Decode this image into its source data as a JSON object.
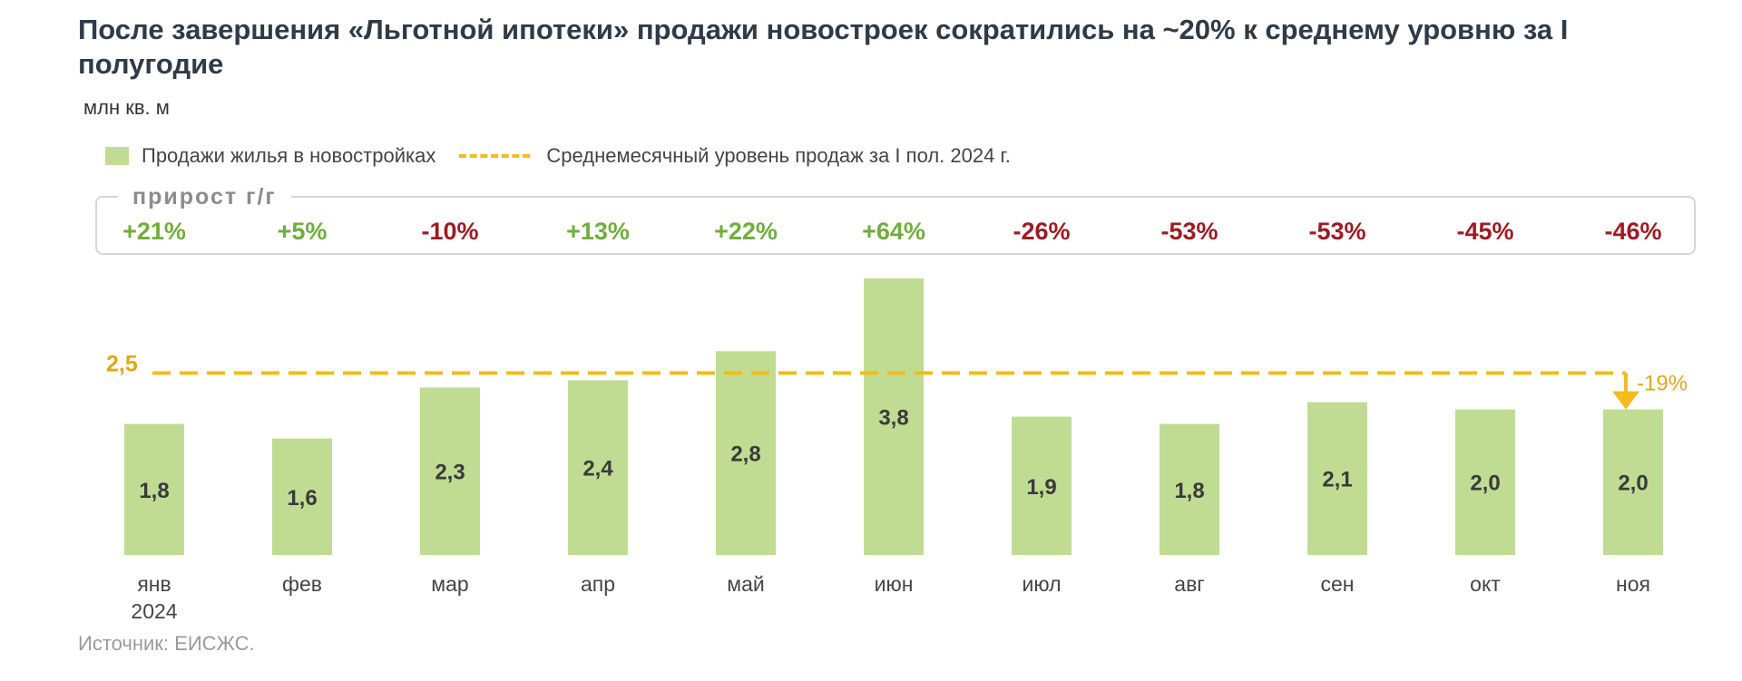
{
  "title": "После завершения «Льготной ипотеки» продажи новостроек сократились на ~20% к среднему уровню за I полугодие",
  "unit": "млн кв. м",
  "legend": {
    "bars": "Продажи жилья в новостройках",
    "line": "Среднемесячный уровень продаж за I пол. 2024 г."
  },
  "growth": {
    "label": "прирост г/г"
  },
  "source": "Источник: ЕИСЖС.",
  "colors": {
    "bar": "#c0dc93",
    "avg_line": "#f2bc1c",
    "positive": "#6fae3c",
    "negative": "#9e1b22"
  },
  "chart_data": {
    "type": "bar",
    "categories": [
      "янв",
      "фев",
      "мар",
      "апр",
      "май",
      "июн",
      "июл",
      "авг",
      "сен",
      "окт",
      "ноя"
    ],
    "category_sublabels": [
      "2024",
      "",
      "",
      "",
      "",
      "",
      "",
      "",
      "",
      "",
      ""
    ],
    "series": [
      {
        "name": "Продажи жилья в новостройках",
        "values": [
          1.8,
          1.6,
          2.3,
          2.4,
          2.8,
          3.8,
          1.9,
          1.8,
          2.1,
          2.0,
          2.0
        ],
        "value_labels": [
          "1,8",
          "1,6",
          "2,3",
          "2,4",
          "2,8",
          "3,8",
          "1,9",
          "1,8",
          "2,1",
          "2,0",
          "2,0"
        ]
      }
    ],
    "yoy_growth": [
      "+21%",
      "+5%",
      "-10%",
      "+13%",
      "+22%",
      "+64%",
      "-26%",
      "-53%",
      "-53%",
      "-45%",
      "-46%"
    ],
    "reference_line": {
      "name": "Среднемесячный уровень продаж за I пол. 2024 г.",
      "value": 2.5,
      "label": "2,5"
    },
    "annotation": {
      "text": "-19%",
      "category": "ноя"
    },
    "ylim": [
      0,
      3.8
    ],
    "grid": false
  }
}
